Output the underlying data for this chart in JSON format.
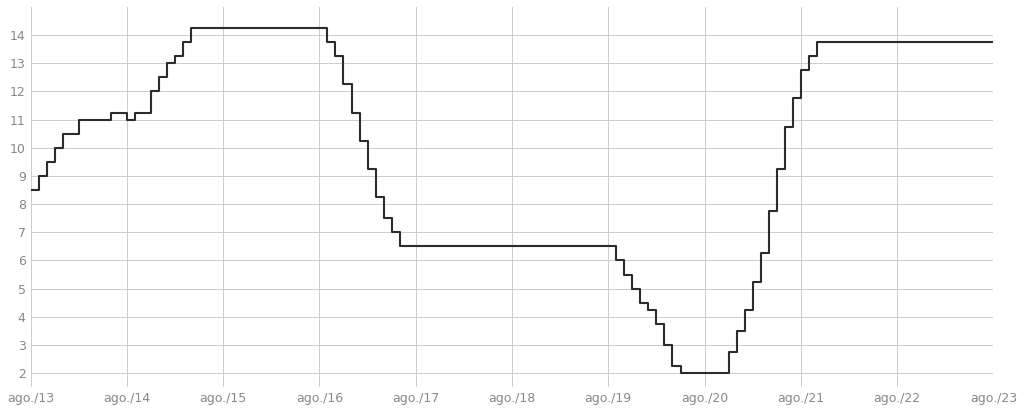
{
  "background_color": "#ffffff",
  "line_color": "#2c2c2c",
  "grid_color": "#cccccc",
  "tick_color": "#888888",
  "xlim_start": 0,
  "xlim_end": 120,
  "ylim": [
    1.5,
    15.0
  ],
  "yticks": [
    2,
    3,
    4,
    5,
    6,
    7,
    8,
    9,
    10,
    11,
    12,
    13,
    14
  ],
  "xtick_labels": [
    "ago./13",
    "ago./14",
    "ago./15",
    "ago./16",
    "ago./17",
    "ago./18",
    "ago./19",
    "ago./20",
    "ago./21",
    "ago./22",
    "ago./23"
  ],
  "xtick_positions": [
    0,
    12,
    24,
    36,
    48,
    60,
    72,
    84,
    96,
    108,
    120
  ],
  "selic_data": [
    [
      0,
      8.5
    ],
    [
      1,
      9.0
    ],
    [
      2,
      9.5
    ],
    [
      3,
      10.0
    ],
    [
      4,
      10.5
    ],
    [
      6,
      11.0
    ],
    [
      8,
      11.0
    ],
    [
      10,
      11.25
    ],
    [
      12,
      11.0
    ],
    [
      13,
      11.25
    ],
    [
      15,
      12.0
    ],
    [
      16,
      12.5
    ],
    [
      17,
      13.0
    ],
    [
      18,
      13.25
    ],
    [
      19,
      13.75
    ],
    [
      20,
      14.25
    ],
    [
      21,
      14.25
    ],
    [
      22,
      14.25
    ],
    [
      24,
      14.25
    ],
    [
      26,
      14.25
    ],
    [
      28,
      14.25
    ],
    [
      30,
      14.25
    ],
    [
      32,
      14.25
    ],
    [
      34,
      14.25
    ],
    [
      36,
      14.25
    ],
    [
      37,
      13.75
    ],
    [
      38,
      13.25
    ],
    [
      39,
      12.25
    ],
    [
      40,
      11.25
    ],
    [
      41,
      10.25
    ],
    [
      42,
      9.25
    ],
    [
      43,
      8.25
    ],
    [
      44,
      7.5
    ],
    [
      45,
      7.0
    ],
    [
      46,
      6.5
    ],
    [
      48,
      6.5
    ],
    [
      50,
      6.5
    ],
    [
      52,
      6.5
    ],
    [
      54,
      6.5
    ],
    [
      56,
      6.5
    ],
    [
      58,
      6.5
    ],
    [
      60,
      6.5
    ],
    [
      62,
      6.5
    ],
    [
      64,
      6.5
    ],
    [
      66,
      6.5
    ],
    [
      68,
      6.5
    ],
    [
      70,
      6.5
    ],
    [
      72,
      6.5
    ],
    [
      73,
      6.0
    ],
    [
      74,
      5.5
    ],
    [
      75,
      5.0
    ],
    [
      76,
      4.5
    ],
    [
      77,
      4.25
    ],
    [
      78,
      3.75
    ],
    [
      79,
      3.0
    ],
    [
      80,
      2.25
    ],
    [
      81,
      2.0
    ],
    [
      82,
      2.0
    ],
    [
      83,
      2.0
    ],
    [
      84,
      2.0
    ],
    [
      86,
      2.0
    ],
    [
      87,
      2.75
    ],
    [
      88,
      3.5
    ],
    [
      89,
      4.25
    ],
    [
      90,
      5.25
    ],
    [
      91,
      6.25
    ],
    [
      92,
      7.75
    ],
    [
      93,
      9.25
    ],
    [
      94,
      10.75
    ],
    [
      95,
      11.75
    ],
    [
      96,
      12.75
    ],
    [
      97,
      13.25
    ],
    [
      98,
      13.75
    ],
    [
      100,
      13.75
    ],
    [
      108,
      13.75
    ],
    [
      120,
      13.75
    ]
  ]
}
